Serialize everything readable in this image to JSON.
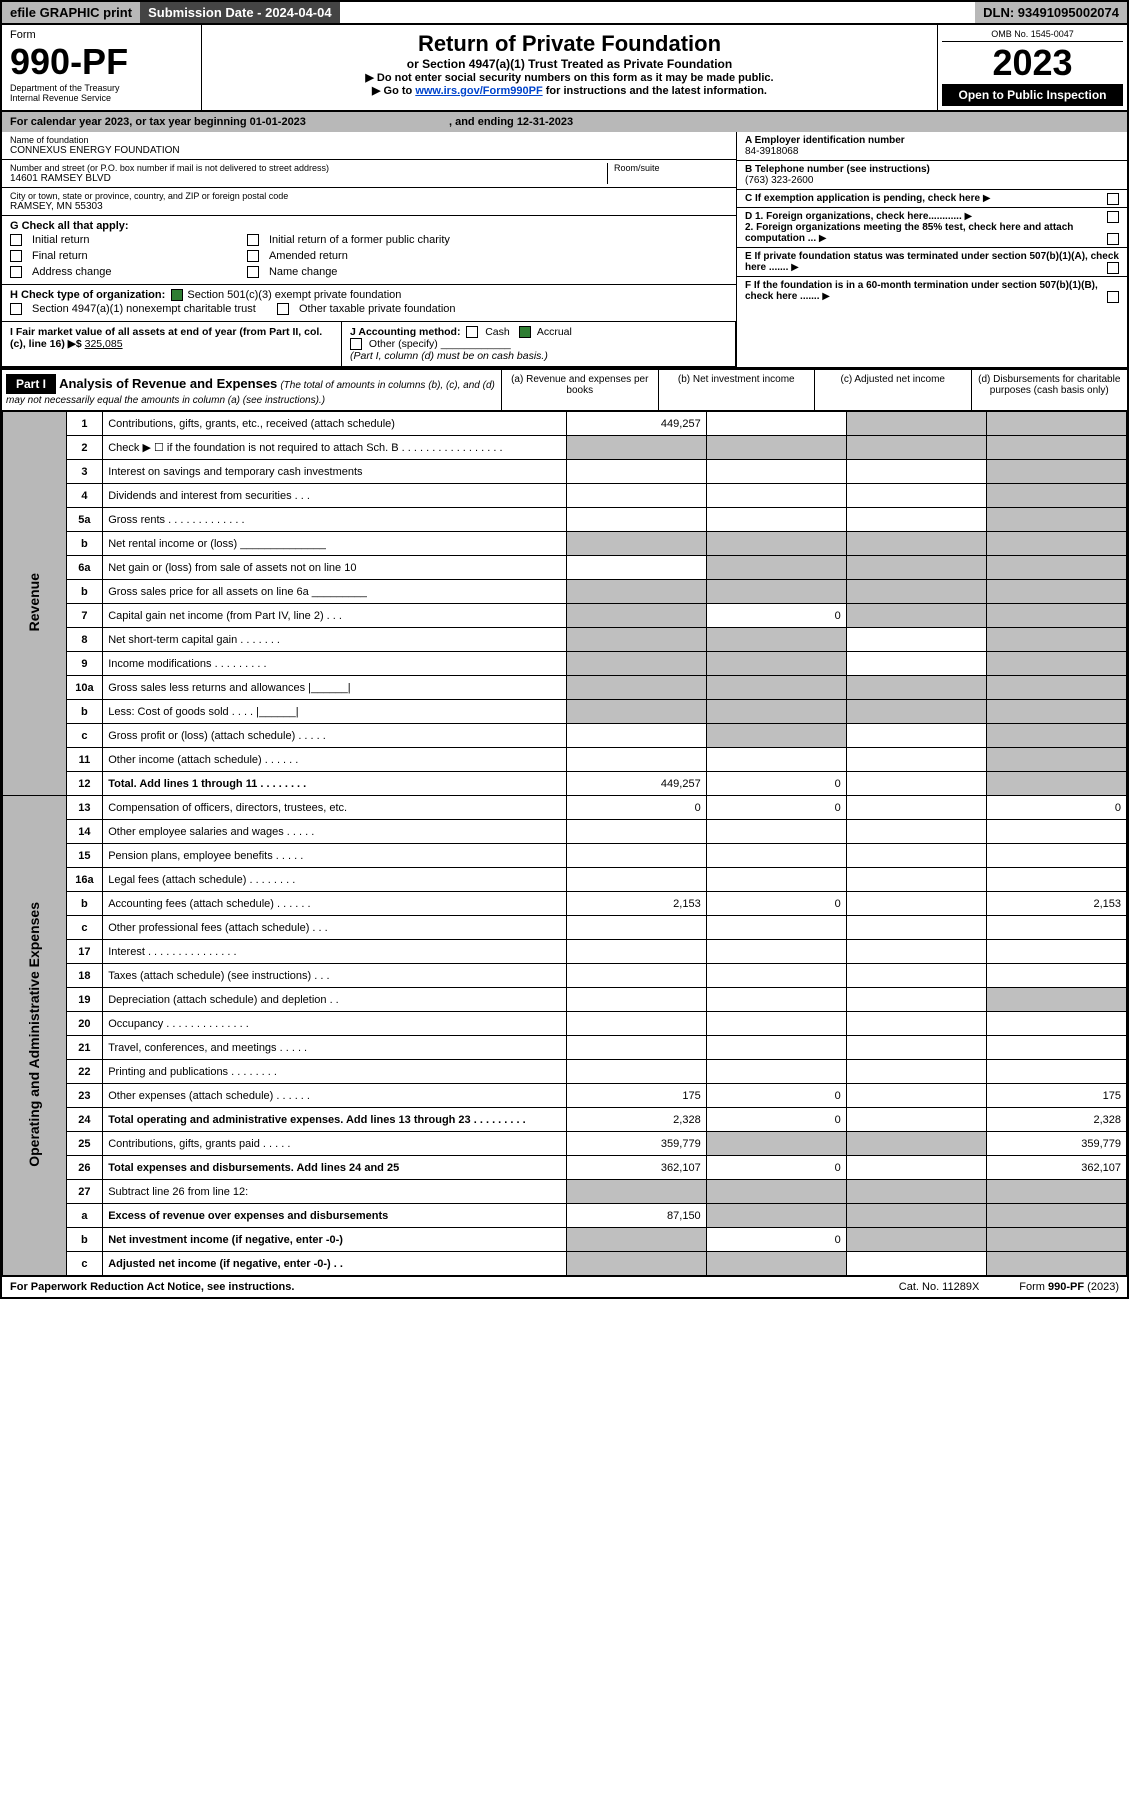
{
  "topbar": {
    "efile": "efile GRAPHIC print",
    "subdate": "Submission Date - 2024-04-04",
    "dln": "DLN: 93491095002074"
  },
  "header": {
    "form_word": "Form",
    "form_no": "990-PF",
    "dept": "Department of the Treasury",
    "irs": "Internal Revenue Service",
    "title": "Return of Private Foundation",
    "subtitle": "or Section 4947(a)(1) Trust Treated as Private Foundation",
    "instr1": "▶ Do not enter social security numbers on this form as it may be made public.",
    "instr2_a": "▶ Go to ",
    "instr2_link": "www.irs.gov/Form990PF",
    "instr2_b": " for instructions and the latest information.",
    "omb": "OMB No. 1545-0047",
    "year": "2023",
    "open": "Open to Public Inspection"
  },
  "calyr": {
    "a": "For calendar year 2023, or tax year beginning 01-01-2023",
    "b": ", and ending 12-31-2023"
  },
  "id_left": {
    "name_lbl": "Name of foundation",
    "name": "CONNEXUS ENERGY FOUNDATION",
    "addr_lbl": "Number and street (or P.O. box number if mail is not delivered to street address)",
    "addr": "14601 RAMSEY BLVD",
    "room_lbl": "Room/suite",
    "city_lbl": "City or town, state or province, country, and ZIP or foreign postal code",
    "city": "RAMSEY, MN  55303"
  },
  "id_right": {
    "a_lbl": "A Employer identification number",
    "a": "84-3918068",
    "b_lbl": "B Telephone number (see instructions)",
    "b": "(763) 323-2600",
    "c": "C If exemption application is pending, check here",
    "d1": "D 1. Foreign organizations, check here............",
    "d2": "2. Foreign organizations meeting the 85% test, check here and attach computation ...",
    "e": "E  If private foundation status was terminated under section 507(b)(1)(A), check here .......",
    "f": "F  If the foundation is in a 60-month termination under section 507(b)(1)(B), check here ......."
  },
  "g": {
    "label": "G Check all that apply:",
    "o1": "Initial return",
    "o2": "Initial return of a former public charity",
    "o3": "Final return",
    "o4": "Amended return",
    "o5": "Address change",
    "o6": "Name change"
  },
  "h": {
    "label": "H Check type of organization:",
    "o1": "Section 501(c)(3) exempt private foundation",
    "o2": "Section 4947(a)(1) nonexempt charitable trust",
    "o3": "Other taxable private foundation"
  },
  "i": {
    "label": "I Fair market value of all assets at end of year (from Part II, col. (c), line 16) ▶$",
    "val": "325,085"
  },
  "j": {
    "label": "J Accounting method:",
    "cash": "Cash",
    "accrual": "Accrual",
    "other": "Other (specify)",
    "note": "(Part I, column (d) must be on cash basis.)"
  },
  "part1": {
    "tag": "Part I",
    "title": "Analysis of Revenue and Expenses",
    "note": "(The total of amounts in columns (b), (c), and (d) may not necessarily equal the amounts in column (a) (see instructions).)",
    "col_a": "(a)  Revenue and expenses per books",
    "col_b": "(b)  Net investment income",
    "col_c": "(c)  Adjusted net income",
    "col_d": "(d)  Disbursements for charitable purposes (cash basis only)"
  },
  "sides": {
    "rev": "Revenue",
    "exp": "Operating and Administrative Expenses"
  },
  "rows": [
    {
      "n": "1",
      "d": "Contributions, gifts, grants, etc., received (attach schedule)",
      "a": "449,257",
      "b": "",
      "c": "grey",
      "dd": "grey"
    },
    {
      "n": "2",
      "d": "Check ▶ ☐ if the foundation is not required to attach Sch. B  . . . . . . . . . . . . . . . . .",
      "a": "grey",
      "b": "grey",
      "c": "grey",
      "dd": "grey"
    },
    {
      "n": "3",
      "d": "Interest on savings and temporary cash investments",
      "a": "",
      "b": "",
      "c": "",
      "dd": "grey"
    },
    {
      "n": "4",
      "d": "Dividends and interest from securities  . . .",
      "a": "",
      "b": "",
      "c": "",
      "dd": "grey"
    },
    {
      "n": "5a",
      "d": "Gross rents  . . . . . . . . . . . . .",
      "a": "",
      "b": "",
      "c": "",
      "dd": "grey"
    },
    {
      "n": "b",
      "d": "Net rental income or (loss)  ______________",
      "a": "grey",
      "b": "grey",
      "c": "grey",
      "dd": "grey"
    },
    {
      "n": "6a",
      "d": "Net gain or (loss) from sale of assets not on line 10",
      "a": "",
      "b": "grey",
      "c": "grey",
      "dd": "grey"
    },
    {
      "n": "b",
      "d": "Gross sales price for all assets on line 6a _________",
      "a": "grey",
      "b": "grey",
      "c": "grey",
      "dd": "grey"
    },
    {
      "n": "7",
      "d": "Capital gain net income (from Part IV, line 2)  . . .",
      "a": "grey",
      "b": "0",
      "c": "grey",
      "dd": "grey"
    },
    {
      "n": "8",
      "d": "Net short-term capital gain  . . . . . . .",
      "a": "grey",
      "b": "grey",
      "c": "",
      "dd": "grey"
    },
    {
      "n": "9",
      "d": "Income modifications  . . . . . . . . .",
      "a": "grey",
      "b": "grey",
      "c": "",
      "dd": "grey"
    },
    {
      "n": "10a",
      "d": "Gross sales less returns and allowances  |______|",
      "a": "grey",
      "b": "grey",
      "c": "grey",
      "dd": "grey"
    },
    {
      "n": "b",
      "d": "Less: Cost of goods sold  . . . .  |______|",
      "a": "grey",
      "b": "grey",
      "c": "grey",
      "dd": "grey"
    },
    {
      "n": "c",
      "d": "Gross profit or (loss) (attach schedule)  . . . . .",
      "a": "",
      "b": "grey",
      "c": "",
      "dd": "grey"
    },
    {
      "n": "11",
      "d": "Other income (attach schedule)  . . . . . .",
      "a": "",
      "b": "",
      "c": "",
      "dd": "grey"
    },
    {
      "n": "12",
      "d": "Total. Add lines 1 through 11  . . . . . . . .",
      "a": "449,257",
      "b": "0",
      "c": "",
      "dd": "grey",
      "bold": true
    },
    {
      "n": "13",
      "d": "Compensation of officers, directors, trustees, etc.",
      "a": "0",
      "b": "0",
      "c": "",
      "dd": "0"
    },
    {
      "n": "14",
      "d": "Other employee salaries and wages  . . . . .",
      "a": "",
      "b": "",
      "c": "",
      "dd": ""
    },
    {
      "n": "15",
      "d": "Pension plans, employee benefits  . . . . .",
      "a": "",
      "b": "",
      "c": "",
      "dd": ""
    },
    {
      "n": "16a",
      "d": "Legal fees (attach schedule)  . . . . . . . .",
      "a": "",
      "b": "",
      "c": "",
      "dd": ""
    },
    {
      "n": "b",
      "d": "Accounting fees (attach schedule)  . . . . . .",
      "a": "2,153",
      "b": "0",
      "c": "",
      "dd": "2,153"
    },
    {
      "n": "c",
      "d": "Other professional fees (attach schedule)  . . .",
      "a": "",
      "b": "",
      "c": "",
      "dd": ""
    },
    {
      "n": "17",
      "d": "Interest  . . . . . . . . . . . . . . .",
      "a": "",
      "b": "",
      "c": "",
      "dd": ""
    },
    {
      "n": "18",
      "d": "Taxes (attach schedule) (see instructions)   . . .",
      "a": "",
      "b": "",
      "c": "",
      "dd": ""
    },
    {
      "n": "19",
      "d": "Depreciation (attach schedule) and depletion  . .",
      "a": "",
      "b": "",
      "c": "",
      "dd": "grey"
    },
    {
      "n": "20",
      "d": "Occupancy  . . . . . . . . . . . . . .",
      "a": "",
      "b": "",
      "c": "",
      "dd": ""
    },
    {
      "n": "21",
      "d": "Travel, conferences, and meetings  . . . . .",
      "a": "",
      "b": "",
      "c": "",
      "dd": ""
    },
    {
      "n": "22",
      "d": "Printing and publications  . . . . . . . .",
      "a": "",
      "b": "",
      "c": "",
      "dd": ""
    },
    {
      "n": "23",
      "d": "Other expenses (attach schedule)  . . . . . .",
      "a": "175",
      "b": "0",
      "c": "",
      "dd": "175"
    },
    {
      "n": "24",
      "d": "Total operating and administrative expenses. Add lines 13 through 23  . . . . . . . . .",
      "a": "2,328",
      "b": "0",
      "c": "",
      "dd": "2,328",
      "bold": true
    },
    {
      "n": "25",
      "d": "Contributions, gifts, grants paid  . . . . .",
      "a": "359,779",
      "b": "grey",
      "c": "grey",
      "dd": "359,779"
    },
    {
      "n": "26",
      "d": "Total expenses and disbursements. Add lines 24 and 25",
      "a": "362,107",
      "b": "0",
      "c": "",
      "dd": "362,107",
      "bold": true
    },
    {
      "n": "27",
      "d": "Subtract line 26 from line 12:",
      "a": "grey",
      "b": "grey",
      "c": "grey",
      "dd": "grey"
    },
    {
      "n": "a",
      "d": "Excess of revenue over expenses and disbursements",
      "a": "87,150",
      "b": "grey",
      "c": "grey",
      "dd": "grey",
      "bold": true
    },
    {
      "n": "b",
      "d": "Net investment income (if negative, enter -0-)",
      "a": "grey",
      "b": "0",
      "c": "grey",
      "dd": "grey",
      "bold": true
    },
    {
      "n": "c",
      "d": "Adjusted net income (if negative, enter -0-)  . .",
      "a": "grey",
      "b": "grey",
      "c": "",
      "dd": "grey",
      "bold": true
    }
  ],
  "footer": {
    "left": "For Paperwork Reduction Act Notice, see instructions.",
    "mid": "Cat. No. 11289X",
    "right": "Form 990-PF (2023)"
  }
}
